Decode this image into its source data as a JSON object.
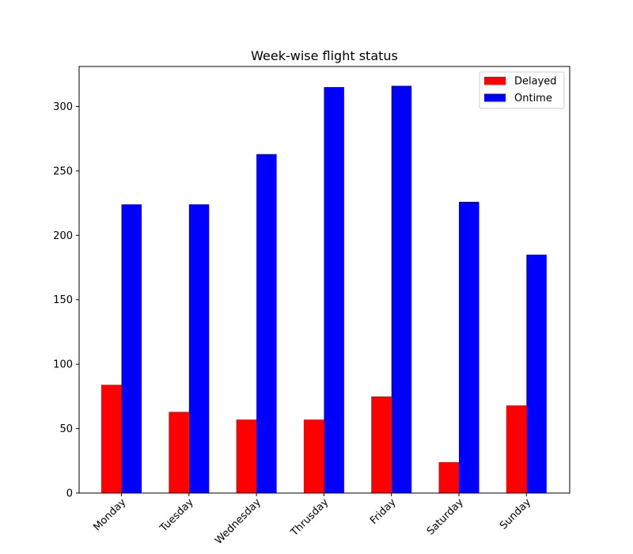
{
  "chart_data": {
    "type": "bar",
    "title": "Week-wise flight status",
    "xlabel": "",
    "ylabel": "",
    "categories": [
      "Monday",
      "Tuesday",
      "Wednesday",
      "Thrusday",
      "Friday",
      "Saturday",
      "Sunday"
    ],
    "series": [
      {
        "name": "Delayed",
        "color": "#ff0000",
        "values": [
          84,
          63,
          57,
          57,
          75,
          24,
          68
        ]
      },
      {
        "name": "Ontime",
        "color": "#0000ff",
        "values": [
          224,
          224,
          263,
          315,
          316,
          226,
          185
        ]
      }
    ],
    "ylim": [
      0,
      331
    ],
    "yticks": [
      0,
      50,
      100,
      150,
      200,
      250,
      300
    ],
    "legend_position": "top-right",
    "grid": false
  }
}
